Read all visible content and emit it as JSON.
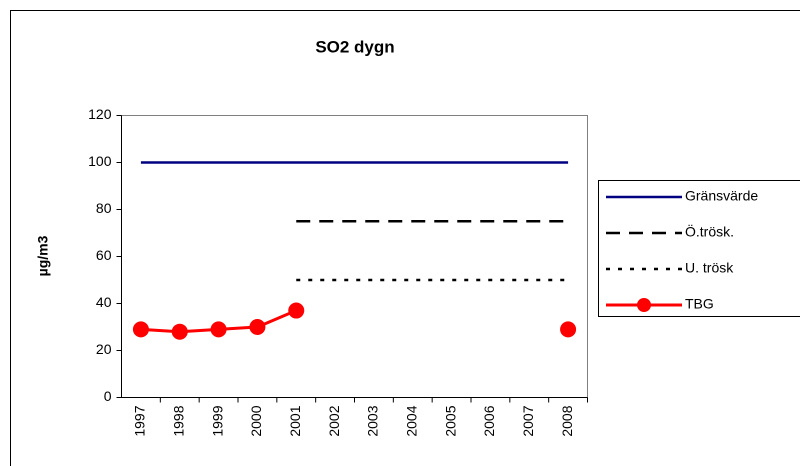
{
  "chart_data": {
    "type": "line",
    "title": "SO2 dygn",
    "y_label": "µg/m3",
    "categories": [
      "1997",
      "1998",
      "1999",
      "2000",
      "2001",
      "2002",
      "2003",
      "2004",
      "2005",
      "2006",
      "2007",
      "2008"
    ],
    "series": [
      {
        "name": "Gränsvärde",
        "color": "#000080",
        "style": "solid",
        "marker": false,
        "values": [
          100,
          100,
          100,
          100,
          100,
          100,
          100,
          100,
          100,
          100,
          100,
          100
        ]
      },
      {
        "name": "Ö.trösk.",
        "color": "#000000",
        "style": "dashed",
        "marker": false,
        "values": [
          null,
          null,
          null,
          null,
          75,
          75,
          75,
          75,
          75,
          75,
          75,
          75
        ]
      },
      {
        "name": "U. trösk",
        "color": "#000000",
        "style": "dotted",
        "marker": false,
        "values": [
          null,
          null,
          null,
          null,
          50,
          50,
          50,
          50,
          50,
          50,
          50,
          50
        ]
      },
      {
        "name": "TBG",
        "color": "#ff0000",
        "style": "solid",
        "marker": true,
        "values": [
          29,
          28,
          29,
          30,
          37,
          null,
          null,
          null,
          null,
          null,
          null,
          29
        ]
      }
    ],
    "ylim": [
      0,
      120
    ],
    "yticks": [
      0,
      20,
      40,
      60,
      80,
      100,
      120
    ],
    "grid": false,
    "legend": "right"
  }
}
